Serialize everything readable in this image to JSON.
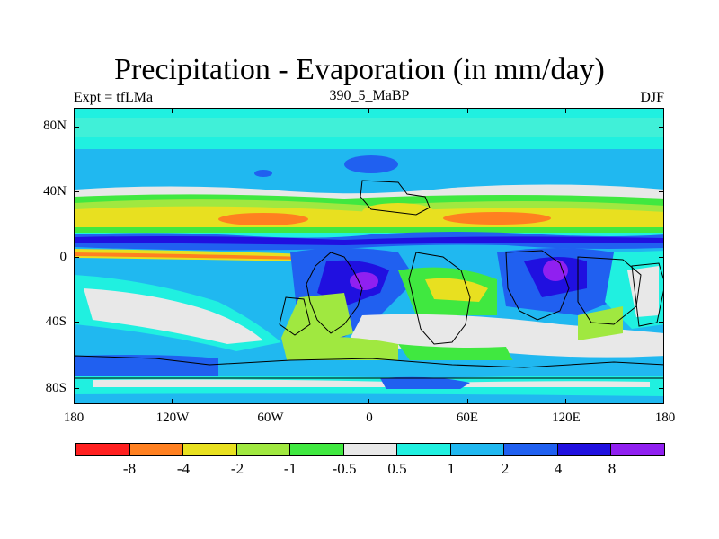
{
  "title": "Precipitation - Evaporation (in mm/day)",
  "left_string": "Expt = tfLMa",
  "center_string": "390_5_MaBP",
  "right_string": "DJF",
  "map": {
    "lat_labels": [
      "80N",
      "40N",
      "0",
      "40S",
      "80S"
    ],
    "lon_labels": [
      "180",
      "120W",
      "60W",
      "0",
      "60E",
      "120E",
      "180"
    ]
  },
  "colorbar": {
    "colors": [
      "#ff2020",
      "#ff8020",
      "#e8e020",
      "#a0e840",
      "#40e840",
      "#e8e8e8",
      "#20f0e0",
      "#20b8f0",
      "#2060f0",
      "#2010e0",
      "#9020f0"
    ],
    "labels": [
      "-8",
      "-4",
      "-2",
      "-1",
      "-0.5",
      "0.5",
      "1",
      "2",
      "4",
      "8"
    ]
  }
}
